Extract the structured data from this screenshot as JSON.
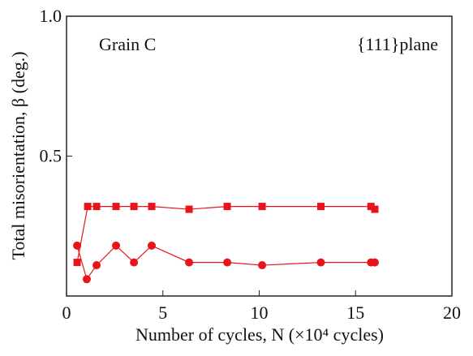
{
  "chart_data": {
    "type": "line",
    "xlabel": "Number of cycles, N (×10⁴ cycles)",
    "ylabel": "Total misorientation, β (deg.)",
    "annotations": [
      "Grain C",
      "{111}plane"
    ],
    "xlim": [
      0,
      20
    ],
    "xticks": [
      0,
      5,
      10,
      15,
      20
    ],
    "ylim": [
      0,
      1
    ],
    "yticks": [
      0.5,
      {
        "value": 1,
        "label": "1.0"
      }
    ],
    "series": [
      {
        "marker": "square",
        "color": "#e8141c",
        "x": [
          0.55,
          1.1,
          1.56,
          2.57,
          3.5,
          4.42,
          6.36,
          8.34,
          10.15,
          13.2,
          15.8,
          16.0
        ],
        "values": [
          0.12,
          0.32,
          0.32,
          0.32,
          0.32,
          0.32,
          0.31,
          0.32,
          0.32,
          0.32,
          0.32,
          0.31
        ]
      },
      {
        "marker": "circle",
        "color": "#e8141c",
        "x": [
          0.55,
          1.05,
          1.56,
          2.57,
          3.5,
          4.42,
          6.36,
          8.34,
          10.15,
          13.2,
          15.8,
          16.0
        ],
        "values": [
          0.18,
          0.06,
          0.11,
          0.18,
          0.12,
          0.18,
          0.12,
          0.12,
          0.11,
          0.12,
          0.12,
          0.12
        ]
      }
    ]
  }
}
